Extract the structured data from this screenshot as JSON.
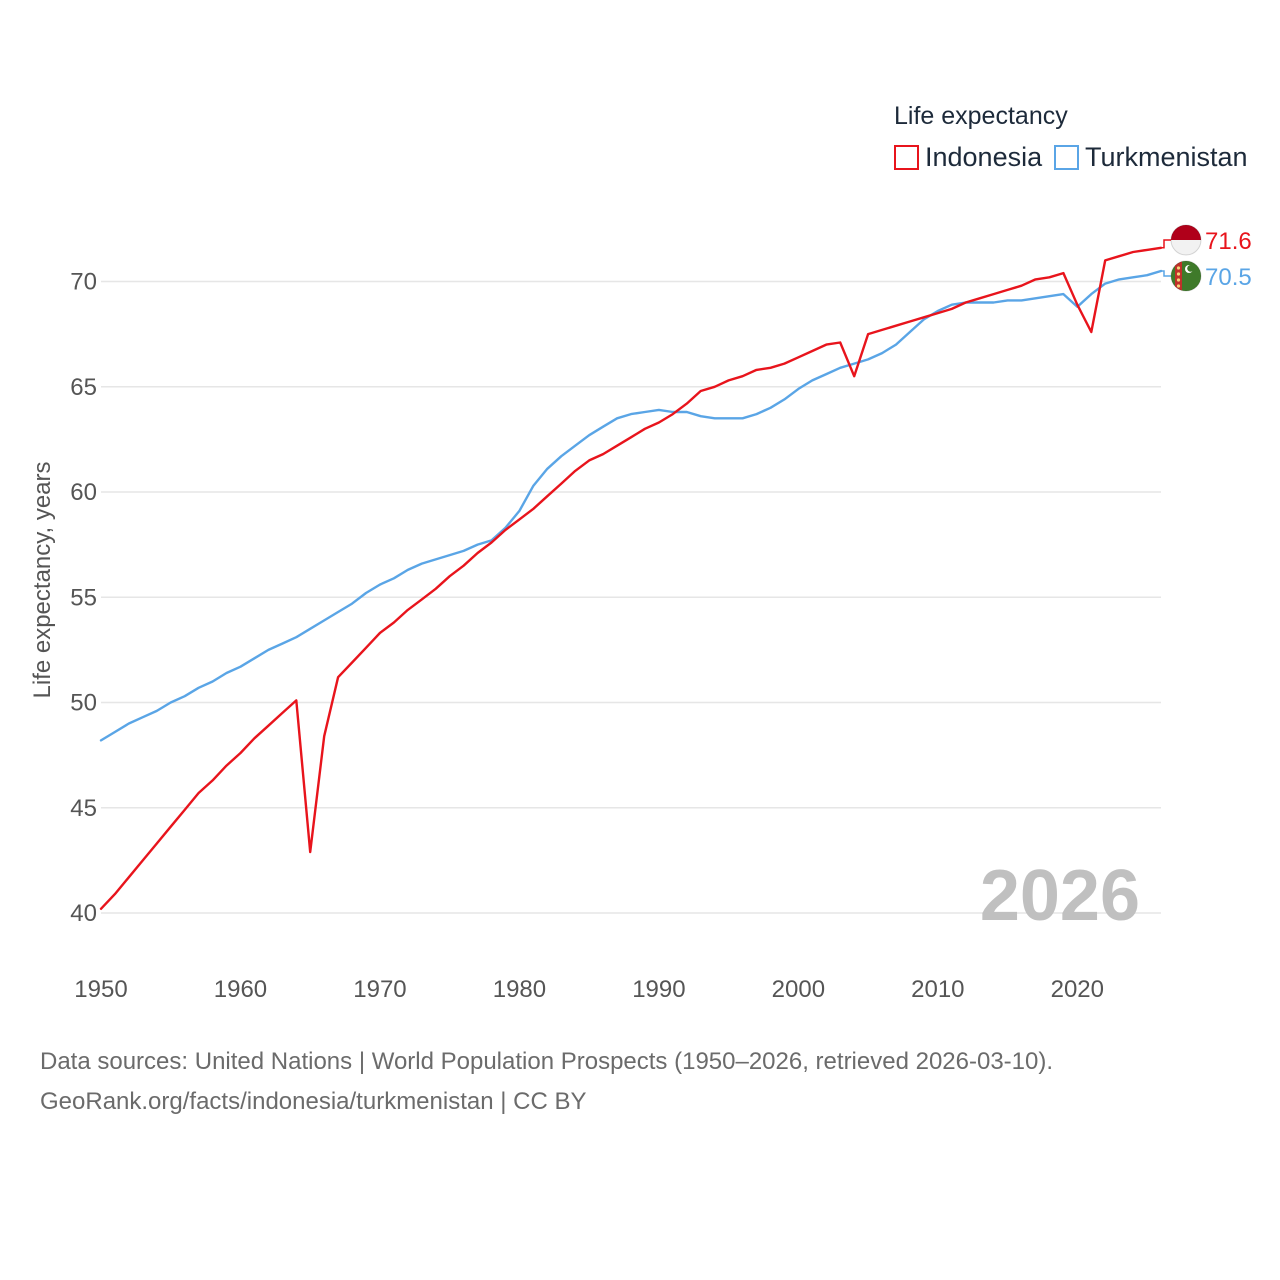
{
  "chart_data": {
    "type": "line",
    "legend_title": "Life expectancy",
    "ylabel": "Life expectancy, years",
    "xlabel": "",
    "xlim": [
      1950,
      2026
    ],
    "ylim": [
      40,
      72
    ],
    "x_ticks": [
      1950,
      1960,
      1970,
      1980,
      1990,
      2000,
      2010,
      2020
    ],
    "y_ticks": [
      40,
      45,
      50,
      55,
      60,
      65,
      70
    ],
    "current_year": "2026",
    "legend_position": "top-right",
    "years": [
      1950,
      1951,
      1952,
      1953,
      1954,
      1955,
      1956,
      1957,
      1958,
      1959,
      1960,
      1961,
      1962,
      1963,
      1964,
      1965,
      1966,
      1967,
      1968,
      1969,
      1970,
      1971,
      1972,
      1973,
      1974,
      1975,
      1976,
      1977,
      1978,
      1979,
      1980,
      1981,
      1982,
      1983,
      1984,
      1985,
      1986,
      1987,
      1988,
      1989,
      1990,
      1991,
      1992,
      1993,
      1994,
      1995,
      1996,
      1997,
      1998,
      1999,
      2000,
      2001,
      2002,
      2003,
      2004,
      2005,
      2006,
      2007,
      2008,
      2009,
      2010,
      2011,
      2012,
      2013,
      2014,
      2015,
      2016,
      2017,
      2018,
      2019,
      2020,
      2021,
      2022,
      2023,
      2024,
      2025,
      2026
    ],
    "series": [
      {
        "name": "Indonesia",
        "color": "#e8141c",
        "end_label": "71.6",
        "flag": "indonesia-flag",
        "values": [
          40.2,
          40.9,
          41.7,
          42.5,
          43.3,
          44.1,
          44.9,
          45.7,
          46.3,
          47.0,
          47.6,
          48.3,
          48.9,
          49.5,
          50.1,
          42.9,
          48.4,
          51.2,
          51.9,
          52.6,
          53.3,
          53.8,
          54.4,
          54.9,
          55.4,
          56.0,
          56.5,
          57.1,
          57.6,
          58.2,
          58.7,
          59.2,
          59.8,
          60.4,
          61.0,
          61.5,
          61.8,
          62.2,
          62.6,
          63.0,
          63.3,
          63.7,
          64.2,
          64.8,
          65.0,
          65.3,
          65.5,
          65.8,
          65.9,
          66.1,
          66.4,
          66.7,
          67.0,
          67.1,
          65.5,
          67.5,
          67.7,
          67.9,
          68.1,
          68.3,
          68.5,
          68.7,
          69.0,
          69.2,
          69.4,
          69.6,
          69.8,
          70.1,
          70.2,
          70.4,
          68.9,
          67.6,
          71.0,
          71.2,
          71.4,
          71.5,
          71.6
        ]
      },
      {
        "name": "Turkmenistan",
        "color": "#5aa5e6",
        "end_label": "70.5",
        "flag": "turkmenistan-flag",
        "values": [
          48.2,
          48.6,
          49.0,
          49.3,
          49.6,
          50.0,
          50.3,
          50.7,
          51.0,
          51.4,
          51.7,
          52.1,
          52.5,
          52.8,
          53.1,
          53.5,
          53.9,
          54.3,
          54.7,
          55.2,
          55.6,
          55.9,
          56.3,
          56.6,
          56.8,
          57.0,
          57.2,
          57.5,
          57.7,
          58.3,
          59.1,
          60.3,
          61.1,
          61.7,
          62.2,
          62.7,
          63.1,
          63.5,
          63.7,
          63.8,
          63.9,
          63.8,
          63.8,
          63.6,
          63.5,
          63.5,
          63.5,
          63.7,
          64.0,
          64.4,
          64.9,
          65.3,
          65.6,
          65.9,
          66.1,
          66.3,
          66.6,
          67.0,
          67.6,
          68.2,
          68.6,
          68.9,
          69.0,
          69.0,
          69.0,
          69.1,
          69.1,
          69.2,
          69.3,
          69.4,
          68.8,
          69.4,
          69.9,
          70.1,
          70.2,
          70.3,
          70.5
        ]
      }
    ]
  },
  "footer": {
    "line1": "Data sources: United Nations | World Population Prospects (1950–2026, retrieved 2026-03-10).",
    "line2": "GeoRank.org/facts/indonesia/turkmenistan | CC BY"
  }
}
